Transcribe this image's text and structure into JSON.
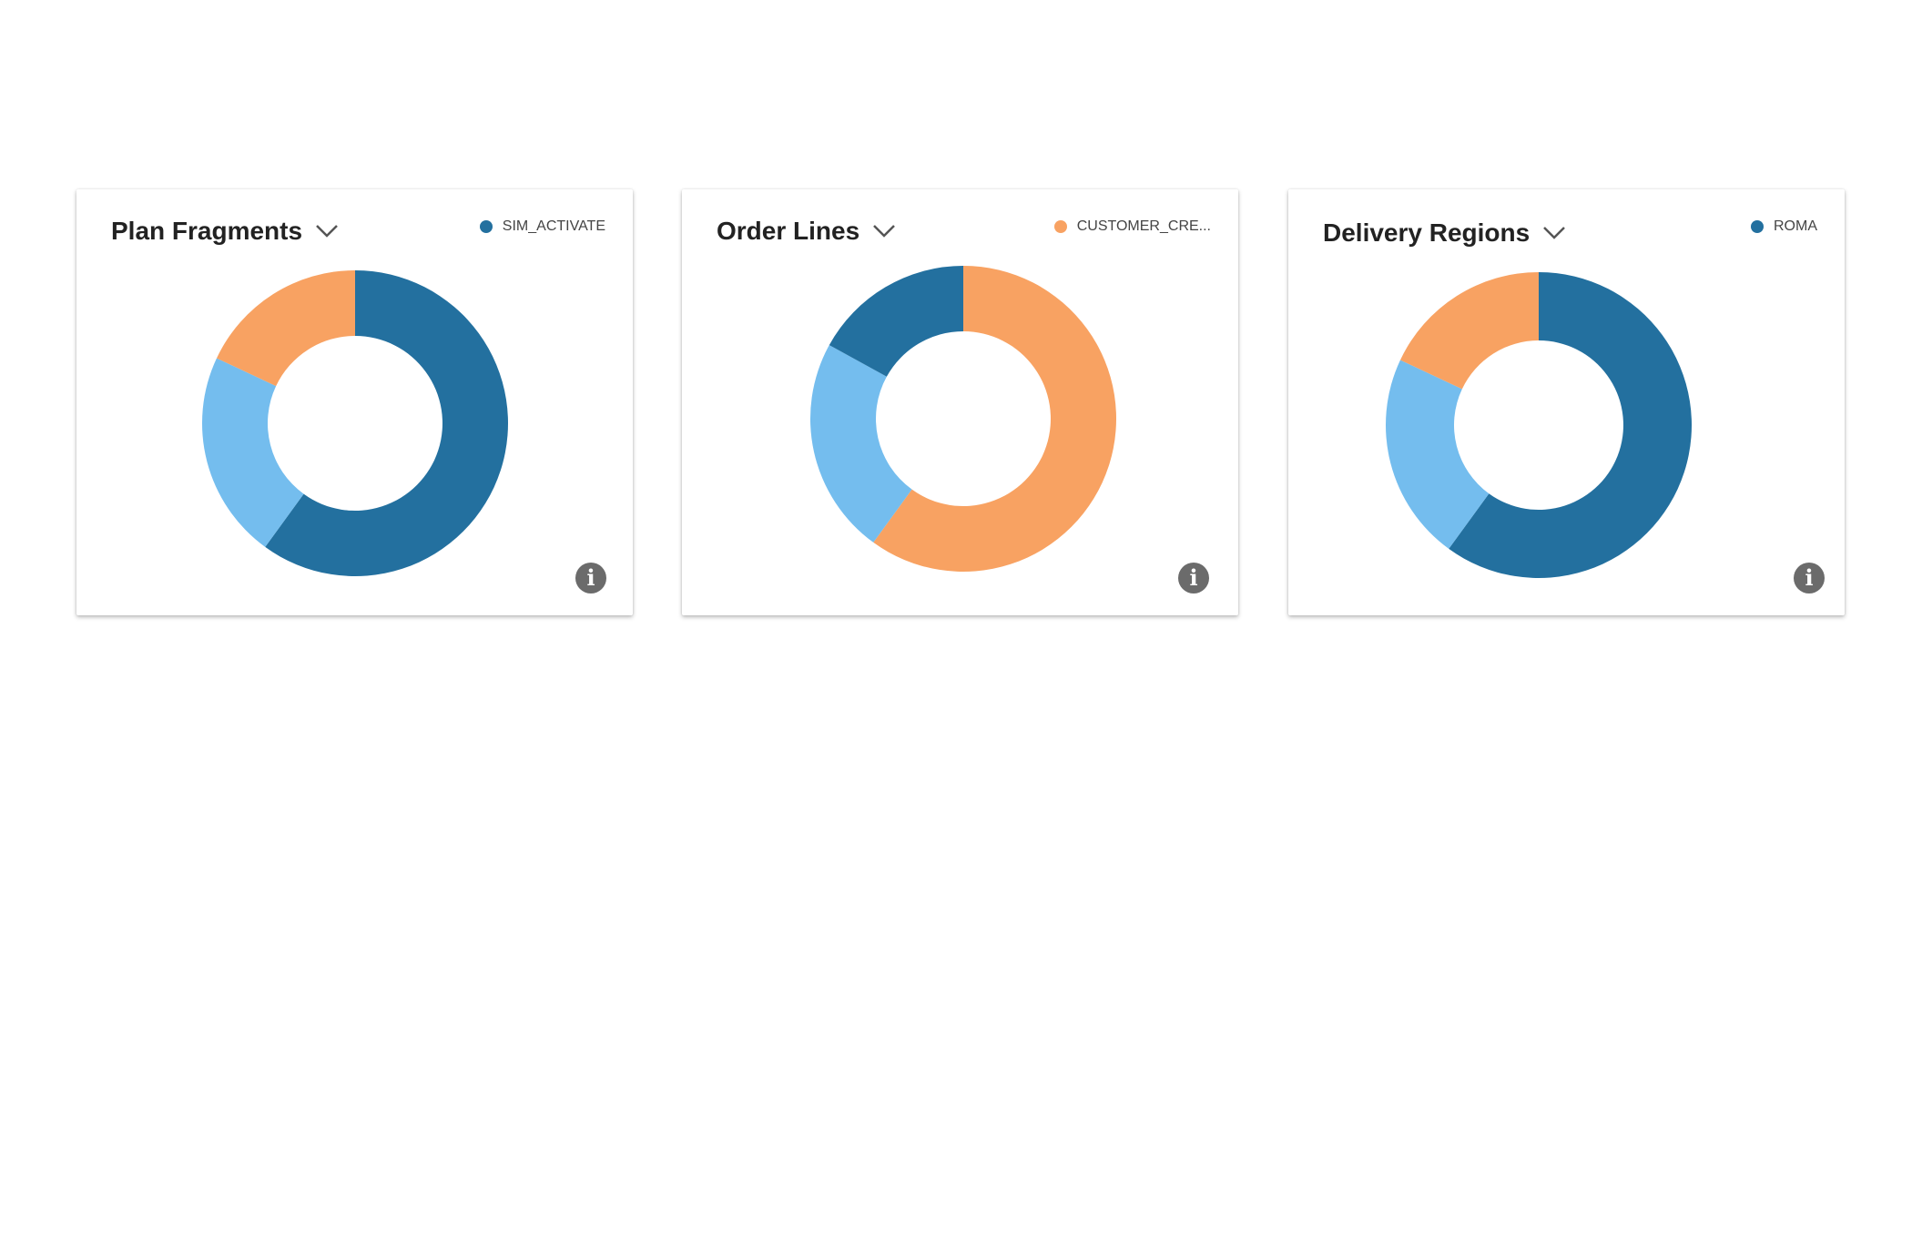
{
  "colors": {
    "dark_blue": "#23709f",
    "light_blue": "#74bdee",
    "orange": "#f8a262",
    "info_icon": "#6b6b6b"
  },
  "cards": [
    {
      "title": "Plan Fragments",
      "legend": {
        "label": "SIM_ACTIVATE",
        "color": "#23709f"
      },
      "info_icon": "i"
    },
    {
      "title": "Order Lines",
      "legend": {
        "label": "CUSTOMER_CRE...",
        "color": "#f8a262"
      },
      "info_icon": "i"
    },
    {
      "title": "Delivery Regions",
      "legend": {
        "label": "ROMA",
        "color": "#23709f"
      },
      "info_icon": "i"
    }
  ],
  "chart_data": [
    {
      "type": "pie",
      "donut": true,
      "title": "Plan Fragments",
      "slices": [
        {
          "value": 60,
          "color": "#23709f"
        },
        {
          "value": 22,
          "color": "#74bdee"
        },
        {
          "value": 18,
          "color": "#f8a262"
        }
      ],
      "legend": [
        "SIM_ACTIVATE"
      ],
      "legend_position": "top-right"
    },
    {
      "type": "pie",
      "donut": true,
      "title": "Order Lines",
      "slices": [
        {
          "value": 60,
          "color": "#f8a262"
        },
        {
          "value": 23,
          "color": "#74bdee"
        },
        {
          "value": 17,
          "color": "#23709f"
        }
      ],
      "legend": [
        "CUSTOMER_CRE..."
      ],
      "legend_position": "top-right"
    },
    {
      "type": "pie",
      "donut": true,
      "title": "Delivery Regions",
      "slices": [
        {
          "value": 60,
          "color": "#23709f"
        },
        {
          "value": 22,
          "color": "#74bdee"
        },
        {
          "value": 18,
          "color": "#f8a262"
        }
      ],
      "legend": [
        "ROMA"
      ],
      "legend_position": "top-right"
    }
  ]
}
